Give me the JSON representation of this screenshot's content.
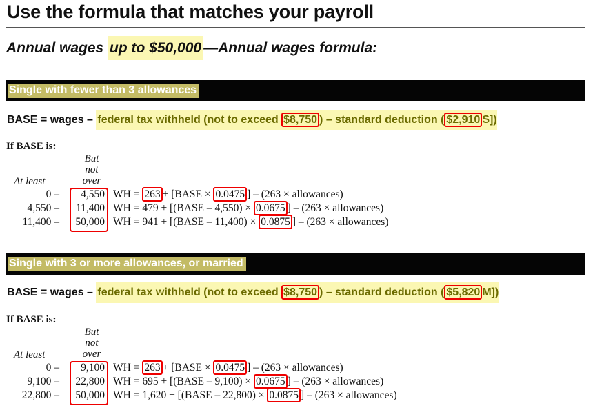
{
  "title": "Use the formula that matches your payroll",
  "subhead": {
    "prefix": "Annual wages ",
    "highlight": "up to $50,000",
    "suffix": "—Annual wages formula:"
  },
  "sections": [
    {
      "band": "Single with fewer than 3 allowances",
      "base": {
        "lead": "BASE = wages – ",
        "part1": "federal tax withheld (not to exceed ",
        "cap": "$8,750",
        "part2": ") – standard deduction (",
        "deduction": "$2,910",
        "code": "S])"
      },
      "if_label": "If BASE is:",
      "col_at_least": "At least",
      "col_but_not_over": [
        "But",
        "not",
        "over"
      ],
      "rows": [
        {
          "least": "0",
          "dash": "–",
          "over": "4,550",
          "f_pre": "WH = ",
          "f_box1": "263",
          "f_mid": "+ [BASE × ",
          "f_box2": "0.0475",
          "f_post": "] – (263 × allowances)"
        },
        {
          "least": "4,550",
          "dash": "–",
          "over": "11,400",
          "f_pre": "WH = 479 + [(BASE – 4,550) × ",
          "f_box1": "",
          "f_mid": "",
          "f_box2": "0.0675",
          "f_post": "] – (263 × allowances)"
        },
        {
          "least": "11,400",
          "dash": "–",
          "over": "50,000",
          "f_pre": "WH = 941 + [(BASE – 11,400) × ",
          "f_box1": "",
          "f_mid": "",
          "f_box2": "0.0875",
          "f_post": "] – (263 × allowances)"
        }
      ]
    },
    {
      "band": "Single with 3 or more allowances, or married",
      "base": {
        "lead": "BASE = wages – ",
        "part1": "federal tax withheld (not to exceed ",
        "cap": "$8,750",
        "part2": ") – standard deduction (",
        "deduction": "$5,820",
        "code": "M])"
      },
      "if_label": "If BASE is:",
      "col_at_least": "At least",
      "col_but_not_over": [
        "But",
        "not",
        "over"
      ],
      "rows": [
        {
          "least": "0",
          "dash": "–",
          "over": "9,100",
          "f_pre": "WH = ",
          "f_box1": "263",
          "f_mid": "+ [BASE × ",
          "f_box2": "0.0475",
          "f_post": "] – (263 × allowances)"
        },
        {
          "least": "9,100",
          "dash": "–",
          "over": "22,800",
          "f_pre": "WH = 695 + [(BASE – 9,100) × ",
          "f_box1": "",
          "f_mid": "",
          "f_box2": "0.0675",
          "f_post": "] – (263 × allowances)"
        },
        {
          "least": "22,800",
          "dash": "–",
          "over": "50,000",
          "f_pre": "WH = 1,620 + [(BASE – 22,800) × ",
          "f_box1": "",
          "f_mid": "",
          "f_box2": "0.0875",
          "f_post": "] – (263 × allowances)"
        }
      ]
    }
  ],
  "colors": {
    "band_bg": "#050505",
    "band_label_bg": "#c3bb65",
    "highlight": "#fbf7b3",
    "olive_text": "#6b6b00",
    "annotation_red": "#e00000"
  }
}
